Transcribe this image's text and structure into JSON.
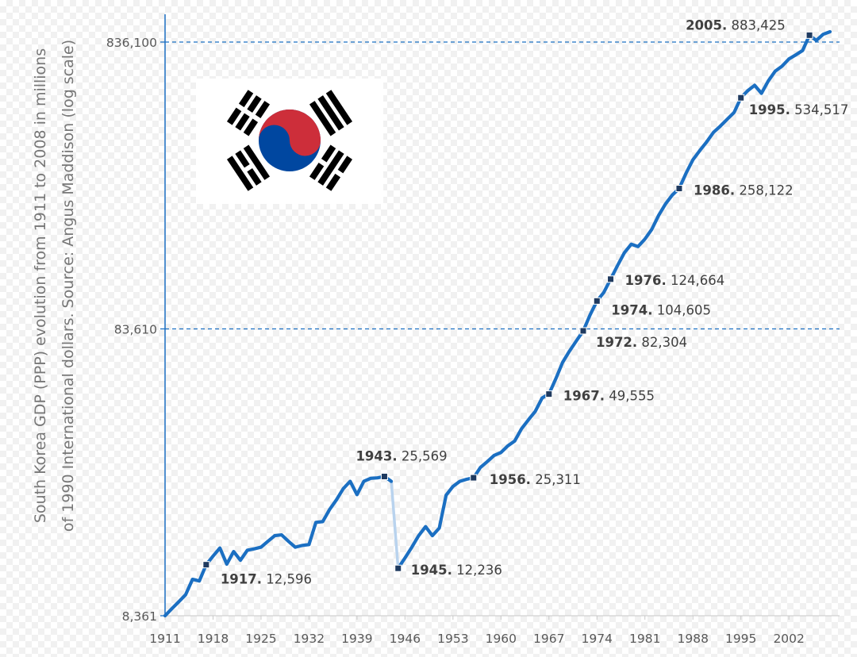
{
  "chart_data": {
    "type": "line",
    "ylabel": [
      "South Korea GDP (PPP) evolution from 1911 to 2008 in millions",
      "of 1990 International dollars. Source: Angus Maddison (log scale)"
    ],
    "y_scale": "log",
    "ylim": [
      8361,
      1000000
    ],
    "xlim": [
      1911,
      2008
    ],
    "y_ticks": [
      {
        "value": 8361,
        "label": "8,361"
      },
      {
        "value": 83610,
        "label": "83,610"
      },
      {
        "value": 836100,
        "label": "836,100"
      }
    ],
    "x_ticks": [
      1911,
      1918,
      1925,
      1932,
      1939,
      1946,
      1953,
      1960,
      1967,
      1974,
      1981,
      1988,
      1995,
      2002
    ],
    "reference_lines": [
      83610,
      836100
    ],
    "series": [
      {
        "x": [
          1911,
          1912,
          1913,
          1914,
          1915,
          1916,
          1917,
          1918,
          1919,
          1920,
          1921,
          1922,
          1923,
          1924,
          1925,
          1926,
          1927,
          1928,
          1929,
          1930,
          1931,
          1932,
          1933,
          1934,
          1935,
          1936,
          1937,
          1938,
          1939,
          1940,
          1941,
          1942,
          1943,
          1944
        ],
        "y": [
          8361,
          8850,
          9350,
          9900,
          11200,
          11050,
          12596,
          13500,
          14400,
          12650,
          14000,
          13050,
          14150,
          14300,
          14500,
          15200,
          15900,
          16000,
          15200,
          14500,
          14700,
          14800,
          17700,
          17800,
          19600,
          21200,
          23200,
          24600,
          22100,
          24600,
          25200,
          25300,
          25569,
          24600
        ]
      },
      {
        "x": [
          1945,
          1946,
          1947,
          1948,
          1949,
          1950,
          1951,
          1952,
          1953,
          1954,
          1955,
          1956,
          1957,
          1958,
          1959,
          1960,
          1961,
          1962,
          1963,
          1964,
          1965,
          1966,
          1967,
          1968,
          1969,
          1970,
          1971,
          1972,
          1973,
          1974,
          1975,
          1976,
          1977,
          1978,
          1979,
          1980,
          1981,
          1982,
          1983,
          1984,
          1985,
          1986,
          1987,
          1988,
          1989,
          1990,
          1991,
          1992,
          1993,
          1994,
          1995,
          1996,
          1997,
          1998,
          1999,
          2000,
          2001,
          2002,
          2003,
          2004,
          2005,
          2006,
          2007,
          2008
        ],
        "y": [
          12236,
          13300,
          14500,
          15900,
          17100,
          15900,
          16900,
          22000,
          23600,
          24600,
          25000,
          25311,
          27500,
          28800,
          30300,
          31000,
          32700,
          34000,
          37500,
          40300,
          43100,
          48000,
          49555,
          56000,
          64000,
          70000,
          76000,
          82304,
          93500,
          104605,
          112000,
          124664,
          139000,
          154000,
          165000,
          162000,
          172000,
          186000,
          208000,
          228000,
          245000,
          258122,
          292000,
          325000,
          350000,
          375000,
          405000,
          426000,
          450000,
          475000,
          534517,
          566000,
          591000,
          554000,
          612000,
          662000,
          689000,
          730000,
          754000,
          781000,
          883425,
          847000,
          890000,
          908000
        ]
      }
    ],
    "gap_connector": {
      "x": [
        1944,
        1945
      ],
      "y": [
        24600,
        12236
      ]
    },
    "annotations": [
      {
        "year": "1917.",
        "value": "12,596",
        "x": 1917,
        "y": 12596
      },
      {
        "year": "1943.",
        "value": "25,569",
        "x": 1943,
        "y": 25569
      },
      {
        "year": "1945.",
        "value": "12,236",
        "x": 1945,
        "y": 12236
      },
      {
        "year": "1956.",
        "value": "25,311",
        "x": 1956,
        "y": 25311
      },
      {
        "year": "1967.",
        "value": "49,555",
        "x": 1967,
        "y": 49555
      },
      {
        "year": "1972.",
        "value": "82,304",
        "x": 1972,
        "y": 82304
      },
      {
        "year": "1974.",
        "value": "104,605",
        "x": 1974,
        "y": 104605
      },
      {
        "year": "1976.",
        "value": "124,664",
        "x": 1976,
        "y": 124664
      },
      {
        "year": "1986.",
        "value": "258,122",
        "x": 1986,
        "y": 258122
      },
      {
        "year": "1995.",
        "value": "534,517",
        "x": 1995,
        "y": 534517
      },
      {
        "year": "2005.",
        "value": "883,425",
        "x": 2005,
        "y": 883425
      }
    ],
    "colors": {
      "line": "#1b6fc2",
      "gap": "#b9d3ee",
      "grid": "#1b6fc2",
      "axis": "#1b6fc2",
      "marker": "#1f3a5f"
    },
    "legend": "none",
    "grid": "dashed horizontal lines at 83,610 and 836,100"
  },
  "flag": {
    "name": "south-korea-flag",
    "colors": {
      "red": "#cd2e3a",
      "blue": "#0047a0",
      "black": "#000000"
    }
  }
}
